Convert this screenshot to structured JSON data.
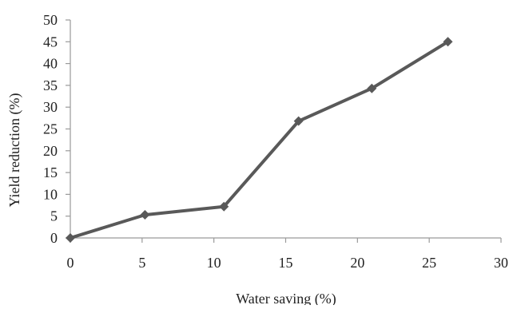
{
  "chart_data": {
    "type": "line",
    "title": "",
    "xlabel": "Water saving (%)",
    "ylabel": "Yield reduction (%)",
    "xlim": [
      0,
      30
    ],
    "ylim": [
      0,
      50
    ],
    "x_ticks": [
      "0",
      "5",
      "10",
      "15",
      "20",
      "25",
      "30"
    ],
    "y_ticks": [
      "0",
      "5",
      "10",
      "15",
      "20",
      "25",
      "30",
      "35",
      "40",
      "45",
      "50"
    ],
    "grid": false,
    "legend": "none",
    "marker": "diamond",
    "series": [
      {
        "x": [
          0,
          5.2,
          10.7,
          15.9,
          21.0,
          26.3
        ],
        "y": [
          0,
          5.3,
          7.2,
          26.8,
          34.3,
          45.0
        ],
        "color": "#595959"
      }
    ]
  }
}
